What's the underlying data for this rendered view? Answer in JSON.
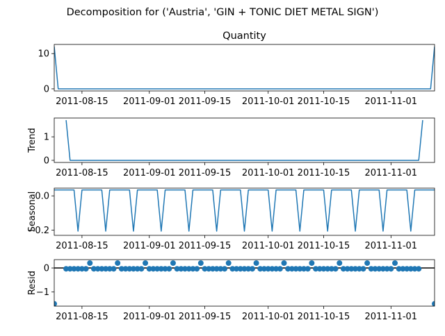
{
  "suptitle": "Decomposition for ('Austria', 'GIN + TONIC DIET METAL SIGN')",
  "date_ticks": [
    "2011-08-15",
    "2011-09-01",
    "2011-09-15",
    "2011-10-01",
    "2011-10-15",
    "2011-11-01"
  ],
  "colors": {
    "line": "#1f77b4",
    "marker": "#1f77b4",
    "zero_line": "#000000",
    "axes": "#000000"
  },
  "chart_data": [
    {
      "type": "line",
      "title": "Quantity",
      "ylabel": "",
      "x_range": [
        "2011-08-08",
        "2011-11-12"
      ],
      "ylim": [
        -0.6,
        12.6
      ],
      "yticks": [
        0,
        10
      ],
      "ytick_labels": [
        "0",
        "10"
      ],
      "points": [
        [
          "2011-08-08",
          12
        ],
        [
          "2011-08-09",
          0
        ],
        [
          "2011-11-11",
          0
        ],
        [
          "2011-11-12",
          12
        ]
      ]
    },
    {
      "type": "line",
      "title": "",
      "ylabel": "Trend",
      "x_range": [
        "2011-08-08",
        "2011-11-12"
      ],
      "ylim": [
        -0.09,
        1.8
      ],
      "yticks": [
        0,
        1
      ],
      "ytick_labels": [
        "0",
        "1"
      ],
      "points": [
        [
          "2011-08-11",
          1.71
        ],
        [
          "2011-08-12",
          0
        ],
        [
          "2011-11-08",
          0
        ],
        [
          "2011-11-09",
          1.71
        ]
      ]
    },
    {
      "type": "line",
      "title": "",
      "ylabel": "Seasonal",
      "x_range": [
        "2011-08-08",
        "2011-11-12"
      ],
      "ylim": [
        -0.23,
        0.045
      ],
      "yticks": [
        0.0,
        -0.2
      ],
      "ytick_labels": [
        "0.0",
        "−0.2"
      ],
      "period": 7,
      "pattern": [
        0.0343,
        0.0343,
        0.0343,
        0.0343,
        0.0343,
        0.0343,
        -0.2057
      ],
      "start": "2011-08-08",
      "end": "2011-11-12"
    },
    {
      "type": "scatter",
      "title": "",
      "ylabel": "Resid",
      "x_range": [
        "2011-08-08",
        "2011-11-12"
      ],
      "ylim": [
        -1.6,
        0.35
      ],
      "yticks": [
        0,
        -1
      ],
      "ytick_labels": [
        "0",
        "−1"
      ],
      "zero_line": true,
      "points": [
        [
          "2011-08-08",
          -1.5
        ],
        [
          "2011-08-11",
          -0.0343
        ],
        [
          "2011-08-12",
          -0.0343
        ],
        [
          "2011-08-13",
          -0.0343
        ],
        [
          "2011-08-14",
          -0.0343
        ],
        [
          "2011-08-15",
          -0.0343
        ],
        [
          "2011-08-16",
          -0.0343
        ],
        [
          "2011-08-17",
          0.2057
        ],
        [
          "2011-08-18",
          -0.0343
        ],
        [
          "2011-08-19",
          -0.0343
        ],
        [
          "2011-08-20",
          -0.0343
        ],
        [
          "2011-08-21",
          -0.0343
        ],
        [
          "2011-08-22",
          -0.0343
        ],
        [
          "2011-08-23",
          -0.0343
        ],
        [
          "2011-08-24",
          0.2057
        ],
        [
          "2011-08-25",
          -0.0343
        ],
        [
          "2011-08-26",
          -0.0343
        ],
        [
          "2011-08-27",
          -0.0343
        ],
        [
          "2011-08-28",
          -0.0343
        ],
        [
          "2011-08-29",
          -0.0343
        ],
        [
          "2011-08-30",
          -0.0343
        ],
        [
          "2011-08-31",
          0.2057
        ],
        [
          "2011-09-01",
          -0.0343
        ],
        [
          "2011-09-02",
          -0.0343
        ],
        [
          "2011-09-03",
          -0.0343
        ],
        [
          "2011-09-04",
          -0.0343
        ],
        [
          "2011-09-05",
          -0.0343
        ],
        [
          "2011-09-06",
          -0.0343
        ],
        [
          "2011-09-07",
          0.2057
        ],
        [
          "2011-09-08",
          -0.0343
        ],
        [
          "2011-09-09",
          -0.0343
        ],
        [
          "2011-09-10",
          -0.0343
        ],
        [
          "2011-09-11",
          -0.0343
        ],
        [
          "2011-09-12",
          -0.0343
        ],
        [
          "2011-09-13",
          -0.0343
        ],
        [
          "2011-09-14",
          0.2057
        ],
        [
          "2011-09-15",
          -0.0343
        ],
        [
          "2011-09-16",
          -0.0343
        ],
        [
          "2011-09-17",
          -0.0343
        ],
        [
          "2011-09-18",
          -0.0343
        ],
        [
          "2011-09-19",
          -0.0343
        ],
        [
          "2011-09-20",
          -0.0343
        ],
        [
          "2011-09-21",
          0.2057
        ],
        [
          "2011-09-22",
          -0.0343
        ],
        [
          "2011-09-23",
          -0.0343
        ],
        [
          "2011-09-24",
          -0.0343
        ],
        [
          "2011-09-25",
          -0.0343
        ],
        [
          "2011-09-26",
          -0.0343
        ],
        [
          "2011-09-27",
          -0.0343
        ],
        [
          "2011-09-28",
          0.2057
        ],
        [
          "2011-09-29",
          -0.0343
        ],
        [
          "2011-09-30",
          -0.0343
        ],
        [
          "2011-10-01",
          -0.0343
        ],
        [
          "2011-10-02",
          -0.0343
        ],
        [
          "2011-10-03",
          -0.0343
        ],
        [
          "2011-10-04",
          -0.0343
        ],
        [
          "2011-10-05",
          0.2057
        ],
        [
          "2011-10-06",
          -0.0343
        ],
        [
          "2011-10-07",
          -0.0343
        ],
        [
          "2011-10-08",
          -0.0343
        ],
        [
          "2011-10-09",
          -0.0343
        ],
        [
          "2011-10-10",
          -0.0343
        ],
        [
          "2011-10-11",
          -0.0343
        ],
        [
          "2011-10-12",
          0.2057
        ],
        [
          "2011-10-13",
          -0.0343
        ],
        [
          "2011-10-14",
          -0.0343
        ],
        [
          "2011-10-15",
          -0.0343
        ],
        [
          "2011-10-16",
          -0.0343
        ],
        [
          "2011-10-17",
          -0.0343
        ],
        [
          "2011-10-18",
          -0.0343
        ],
        [
          "2011-10-19",
          0.2057
        ],
        [
          "2011-10-20",
          -0.0343
        ],
        [
          "2011-10-21",
          -0.0343
        ],
        [
          "2011-10-22",
          -0.0343
        ],
        [
          "2011-10-23",
          -0.0343
        ],
        [
          "2011-10-24",
          -0.0343
        ],
        [
          "2011-10-25",
          -0.0343
        ],
        [
          "2011-10-26",
          0.2057
        ],
        [
          "2011-10-27",
          -0.0343
        ],
        [
          "2011-10-28",
          -0.0343
        ],
        [
          "2011-10-29",
          -0.0343
        ],
        [
          "2011-10-30",
          -0.0343
        ],
        [
          "2011-10-31",
          -0.0343
        ],
        [
          "2011-11-01",
          -0.0343
        ],
        [
          "2011-11-02",
          0.2057
        ],
        [
          "2011-11-03",
          -0.0343
        ],
        [
          "2011-11-04",
          -0.0343
        ],
        [
          "2011-11-05",
          -0.0343
        ],
        [
          "2011-11-06",
          -0.0343
        ],
        [
          "2011-11-07",
          -0.0343
        ],
        [
          "2011-11-08",
          -0.0343
        ],
        [
          "2011-11-12",
          -1.5
        ]
      ]
    }
  ]
}
